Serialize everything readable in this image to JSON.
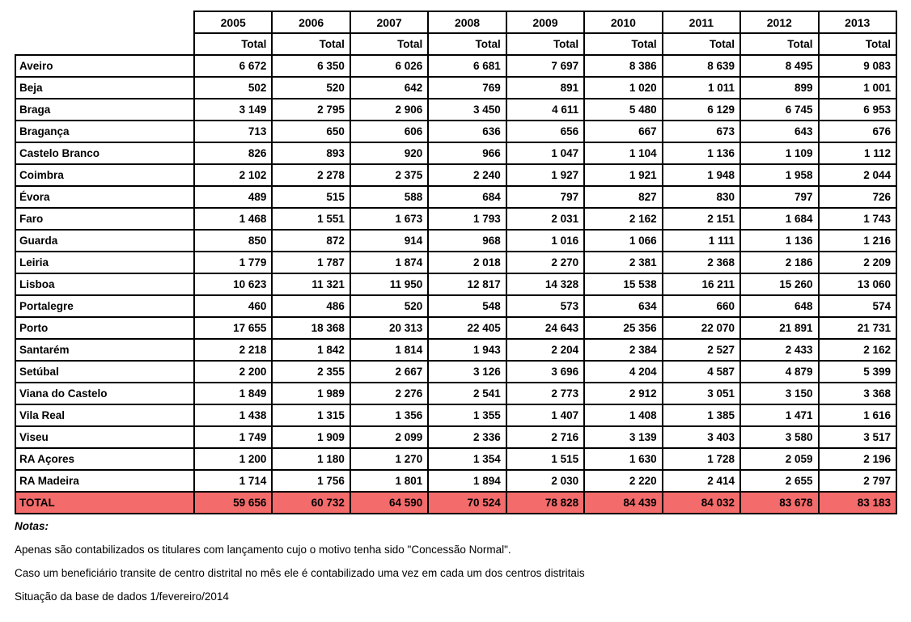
{
  "colors": {
    "total_row_bg": "#f46b6b",
    "border": "#000000"
  },
  "table": {
    "years": [
      "2005",
      "2006",
      "2007",
      "2008",
      "2009",
      "2010",
      "2011",
      "2012",
      "2013"
    ],
    "subheader_label": "Total",
    "rows": [
      {
        "label": "Aveiro",
        "values": [
          "6 672",
          "6 350",
          "6 026",
          "6 681",
          "7 697",
          "8 386",
          "8 639",
          "8 495",
          "9 083"
        ]
      },
      {
        "label": "Beja",
        "values": [
          "502",
          "520",
          "642",
          "769",
          "891",
          "1 020",
          "1 011",
          "899",
          "1 001"
        ]
      },
      {
        "label": "Braga",
        "values": [
          "3 149",
          "2 795",
          "2 906",
          "3 450",
          "4 611",
          "5 480",
          "6 129",
          "6 745",
          "6 953"
        ]
      },
      {
        "label": "Bragança",
        "values": [
          "713",
          "650",
          "606",
          "636",
          "656",
          "667",
          "673",
          "643",
          "676"
        ]
      },
      {
        "label": "Castelo Branco",
        "values": [
          "826",
          "893",
          "920",
          "966",
          "1 047",
          "1 104",
          "1 136",
          "1 109",
          "1 112"
        ]
      },
      {
        "label": "Coimbra",
        "values": [
          "2 102",
          "2 278",
          "2 375",
          "2 240",
          "1 927",
          "1 921",
          "1 948",
          "1 958",
          "2 044"
        ]
      },
      {
        "label": "Évora",
        "values": [
          "489",
          "515",
          "588",
          "684",
          "797",
          "827",
          "830",
          "797",
          "726"
        ]
      },
      {
        "label": "Faro",
        "values": [
          "1 468",
          "1 551",
          "1 673",
          "1 793",
          "2 031",
          "2 162",
          "2 151",
          "1 684",
          "1 743"
        ]
      },
      {
        "label": "Guarda",
        "values": [
          "850",
          "872",
          "914",
          "968",
          "1 016",
          "1 066",
          "1 111",
          "1 136",
          "1 216"
        ]
      },
      {
        "label": "Leiria",
        "values": [
          "1 779",
          "1 787",
          "1 874",
          "2 018",
          "2 270",
          "2 381",
          "2 368",
          "2 186",
          "2 209"
        ]
      },
      {
        "label": "Lisboa",
        "values": [
          "10 623",
          "11 321",
          "11 950",
          "12 817",
          "14 328",
          "15 538",
          "16 211",
          "15 260",
          "13 060"
        ]
      },
      {
        "label": "Portalegre",
        "values": [
          "460",
          "486",
          "520",
          "548",
          "573",
          "634",
          "660",
          "648",
          "574"
        ]
      },
      {
        "label": "Porto",
        "values": [
          "17 655",
          "18 368",
          "20 313",
          "22 405",
          "24 643",
          "25 356",
          "22 070",
          "21 891",
          "21 731"
        ]
      },
      {
        "label": "Santarém",
        "values": [
          "2 218",
          "1 842",
          "1 814",
          "1 943",
          "2 204",
          "2 384",
          "2 527",
          "2 433",
          "2 162"
        ]
      },
      {
        "label": "Setúbal",
        "values": [
          "2 200",
          "2 355",
          "2 667",
          "3 126",
          "3 696",
          "4 204",
          "4 587",
          "4 879",
          "5 399"
        ]
      },
      {
        "label": "Viana do Castelo",
        "values": [
          "1 849",
          "1 989",
          "2 276",
          "2 541",
          "2 773",
          "2 912",
          "3 051",
          "3 150",
          "3 368"
        ]
      },
      {
        "label": "Vila Real",
        "values": [
          "1 438",
          "1 315",
          "1 356",
          "1 355",
          "1 407",
          "1 408",
          "1 385",
          "1 471",
          "1 616"
        ]
      },
      {
        "label": "Viseu",
        "values": [
          "1 749",
          "1 909",
          "2 099",
          "2 336",
          "2 716",
          "3 139",
          "3 403",
          "3 580",
          "3 517"
        ]
      },
      {
        "label": "RA Açores",
        "values": [
          "1 200",
          "1 180",
          "1 270",
          "1 354",
          "1 515",
          "1 630",
          "1 728",
          "2 059",
          "2 196"
        ]
      },
      {
        "label": "RA Madeira",
        "values": [
          "1 714",
          "1 756",
          "1 801",
          "1 894",
          "2 030",
          "2 220",
          "2 414",
          "2 655",
          "2 797"
        ]
      }
    ],
    "total_row": {
      "label": "TOTAL",
      "values": [
        "59 656",
        "60 732",
        "64 590",
        "70 524",
        "78 828",
        "84 439",
        "84 032",
        "83 678",
        "83 183"
      ]
    }
  },
  "notes": {
    "title": "Notas:",
    "lines": [
      "Apenas são contabilizados os titulares com lançamento cujo o motivo tenha sido \"Concessão Normal\".",
      "Caso um beneficiário transite de centro distrital no mês ele é contabilizado uma vez em cada um dos centros distritais",
      "Situação da base de dados 1/fevereiro/2014"
    ]
  }
}
